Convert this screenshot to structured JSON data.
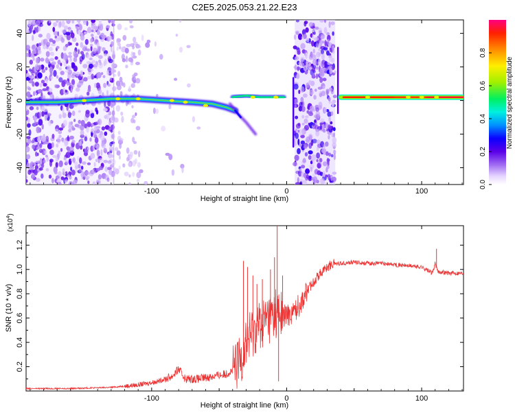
{
  "title": "C2E5.2025.053.21.22.E23",
  "chart_data": [
    {
      "type": "heatmap",
      "xlabel": "Height of straight line (km)",
      "ylabel": "Frequency (Hz)",
      "xlim": [
        -193,
        131
      ],
      "ylim": [
        -50,
        48
      ],
      "x_ticks": [
        -100,
        0,
        100
      ],
      "x_tick_labels": [
        "-100",
        "0",
        "100"
      ],
      "y_ticks": [
        -40,
        -20,
        0,
        20,
        40
      ],
      "y_tick_labels": [
        "-40",
        "-20",
        "0",
        "20",
        "40"
      ],
      "colorbar": {
        "label": "Normalized spectral amplitude",
        "range": [
          0,
          1
        ],
        "ticks": [
          0.0,
          0.2,
          0.4,
          0.6,
          0.8
        ],
        "tick_labels": [
          "0.0",
          "0.2",
          "0.4",
          "0.6",
          "0.8"
        ]
      },
      "features": [
        {
          "x": [
            -193,
            -128
          ],
          "y": [
            -50,
            48
          ],
          "amplitude": 0.25
        },
        {
          "x": [
            -128,
            -110
          ],
          "y": [
            -50,
            48
          ],
          "amplitude": 0.1
        },
        {
          "x": [
            -185,
            -35
          ],
          "y": [
            0,
            -5
          ],
          "amplitude": 0.55
        },
        {
          "x": [
            -38,
            -23
          ],
          "y": [
            -6,
            -20
          ],
          "amplitude": 0.3
        },
        {
          "x": [
            -40,
            0
          ],
          "y": [
            2,
            2
          ],
          "amplitude": 0.6
        },
        {
          "x": [
            6,
            36
          ],
          "y": [
            -50,
            48
          ],
          "amplitude": 0.25
        },
        {
          "x": [
            40,
            131
          ],
          "y": [
            2,
            2
          ],
          "amplitude": 1.0
        }
      ],
      "grid": false
    },
    {
      "type": "line",
      "xlabel": "Height of straight line (km)",
      "ylabel": "SNR (10 * v/v)",
      "y_multiplier_label": "(x10",
      "y_multiplier_exponent": "4",
      "xlim": [
        -193,
        131
      ],
      "ylim": [
        0,
        1.36
      ],
      "x_ticks": [
        -100,
        0,
        100
      ],
      "x_tick_labels": [
        "-100",
        "0",
        "100"
      ],
      "y_ticks": [
        0.2,
        0.4,
        0.6,
        0.8,
        1.0,
        1.2
      ],
      "y_tick_labels": [
        "0.2",
        "0.4",
        "0.6",
        "0.8",
        "1.0",
        "1.2"
      ],
      "series_color": "#ee3333",
      "x": [
        -193,
        -160,
        -130,
        -110,
        -95,
        -85,
        -80,
        -75,
        -65,
        -55,
        -45,
        -38,
        -33,
        -30,
        -27,
        -24,
        -20,
        -15,
        -10,
        -8,
        -5,
        0,
        5,
        10,
        15,
        20,
        25,
        30,
        35,
        40,
        50,
        60,
        70,
        80,
        90,
        100,
        108,
        110,
        112,
        115,
        120,
        131
      ],
      "y": [
        0.02,
        0.02,
        0.03,
        0.05,
        0.08,
        0.12,
        0.18,
        0.1,
        0.1,
        0.12,
        0.14,
        0.18,
        0.3,
        0.4,
        0.45,
        0.5,
        0.55,
        0.6,
        0.62,
        0.65,
        0.62,
        0.62,
        0.65,
        0.72,
        0.82,
        0.9,
        0.97,
        1.02,
        1.05,
        1.05,
        1.06,
        1.05,
        1.05,
        1.04,
        1.03,
        1.02,
        0.97,
        1.05,
        0.98,
        0.98,
        0.97,
        0.97
      ],
      "spikes": [
        {
          "x": -32,
          "y": 1.07
        },
        {
          "x": -29,
          "y": 1.02
        },
        {
          "x": -25,
          "y": 0.95
        },
        {
          "x": -22,
          "y": 0.88
        },
        {
          "x": -18,
          "y": 0.92
        },
        {
          "x": -12,
          "y": 1.0
        },
        {
          "x": -9,
          "y": 1.1
        },
        {
          "x": -7,
          "y": 1.36
        },
        {
          "x": -6,
          "y": 0.08
        },
        {
          "x": -3,
          "y": 0.95
        },
        {
          "x": 111,
          "y": 1.17
        }
      ],
      "grid": false
    }
  ]
}
